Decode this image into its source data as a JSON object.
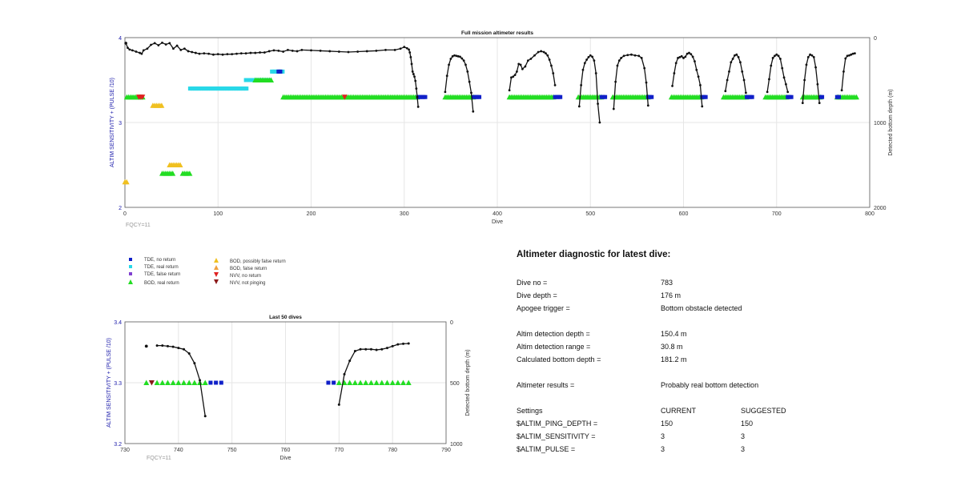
{
  "colors": {
    "tde_no_return": "#1020c8",
    "tde_real_return": "#28d8e8",
    "tde_false_return": "#8040d0",
    "bod_real_return": "#22dd22",
    "bod_possibly_false_return": "#f0c020",
    "bod_false_return": "#f0a040",
    "nvv_no_return": "#e02020",
    "nvv_not_pinging": "#8b1a1a",
    "left_axis_label": "#1a1aaa",
    "depth_line": "#111111",
    "fqcy_text": "#999999"
  },
  "chart_data": [
    {
      "id": "full_mission",
      "type": "scatter",
      "title": "Full mission altimeter results",
      "xlabel": "Dive",
      "ylabel_left": "ALTIM SENSITIVITY + (PULSE /10)",
      "ylabel_right": "Detected bottom depth (m)",
      "xlim": [
        0,
        800
      ],
      "ylim_left": [
        2,
        4
      ],
      "ylim_right": [
        2000,
        0
      ],
      "x_ticks": [
        "0",
        "100",
        "200",
        "300",
        "400",
        "500",
        "600",
        "700",
        "800"
      ],
      "y_left_ticks": [
        "2",
        "3",
        "4"
      ],
      "y_right_ticks": [
        "0",
        "1000",
        "2000"
      ],
      "grid": true,
      "annotation": "FQCY=11",
      "markers": [
        {
          "category": "bod_real_return",
          "shape": "tri-up",
          "y": 3.3,
          "ranges": [
            [
              2,
              20
            ],
            [
              170,
              315
            ],
            [
              344,
              375
            ],
            [
              413,
              462
            ],
            [
              487,
              512
            ],
            [
              524,
              562
            ],
            [
              587,
              620
            ],
            [
              643,
              668
            ],
            [
              688,
              712
            ],
            [
              728,
              747
            ],
            [
              765,
              786
            ]
          ]
        },
        {
          "category": "tde_no_return",
          "shape": "square",
          "y": 3.3,
          "ranges": [
            [
              315,
              323
            ],
            [
              375,
              382
            ],
            [
              462,
              468
            ],
            [
              512,
              516
            ],
            [
              562,
              566
            ],
            [
              620,
              624
            ],
            [
              668,
              674
            ],
            [
              712,
              716
            ],
            [
              747,
              749
            ],
            [
              765,
              768
            ]
          ]
        },
        {
          "category": "nvv_no_return",
          "shape": "tri-down",
          "y": 3.3,
          "ranges": [
            [
              15,
              20
            ],
            [
              236,
              237
            ]
          ]
        },
        {
          "category": "bod_possibly_false_return",
          "shape": "tri-up",
          "y": 3.2,
          "ranges": [
            [
              30,
              40
            ]
          ]
        },
        {
          "category": "tde_real_return",
          "shape": "square",
          "y": 3.4,
          "ranges": [
            [
              70,
              132
            ]
          ]
        },
        {
          "category": "tde_real_return",
          "shape": "square",
          "y": 3.5,
          "ranges": [
            [
              130,
              155
            ]
          ]
        },
        {
          "category": "bod_real_return",
          "shape": "tri-up",
          "y": 3.5,
          "ranges": [
            [
              140,
              158
            ]
          ]
        },
        {
          "category": "tde_real_return",
          "shape": "square",
          "y": 3.6,
          "ranges": [
            [
              158,
              170
            ]
          ]
        },
        {
          "category": "tde_no_return",
          "shape": "square",
          "y": 3.6,
          "ranges": [
            [
              165,
              168
            ]
          ]
        },
        {
          "category": "bod_possibly_false_return",
          "shape": "tri-up",
          "y": 2.5,
          "ranges": [
            [
              48,
              60
            ]
          ]
        },
        {
          "category": "bod_real_return",
          "shape": "tri-up",
          "y": 2.4,
          "ranges": [
            [
              40,
              52
            ],
            [
              62,
              70
            ]
          ]
        },
        {
          "category": "bod_possibly_false_return",
          "shape": "tri-up",
          "y": 2.3,
          "ranges": [
            [
              0,
              2
            ]
          ]
        }
      ],
      "depth_series": [
        {
          "x": [
            1,
            3,
            5,
            8,
            12,
            16,
            18,
            20,
            24,
            28,
            32,
            36,
            40,
            44,
            48,
            52,
            56,
            60,
            64,
            68,
            72,
            76,
            80,
            85,
            90,
            95,
            100,
            105,
            110,
            115,
            120,
            125,
            130,
            135,
            140,
            145,
            150,
            155,
            160,
            165,
            170,
            175,
            180,
            185,
            190,
            200,
            210,
            220,
            230,
            240,
            250,
            260,
            270,
            280,
            290,
            296,
            300,
            303,
            305,
            306,
            307,
            308,
            309,
            310,
            311,
            312,
            313,
            314,
            315
          ],
          "y": [
            65,
            120,
            140,
            150,
            165,
            180,
            190,
            150,
            130,
            85,
            65,
            90,
            60,
            80,
            65,
            130,
            95,
            145,
            130,
            160,
            170,
            180,
            190,
            185,
            190,
            200,
            195,
            200,
            195,
            195,
            190,
            185,
            185,
            180,
            180,
            175,
            175,
            160,
            150,
            155,
            165,
            145,
            155,
            160,
            145,
            150,
            155,
            160,
            165,
            170,
            165,
            160,
            155,
            145,
            145,
            130,
            110,
            125,
            140,
            175,
            230,
            310,
            400,
            430,
            460,
            510,
            600,
            700,
            815
          ]
        },
        {
          "x": [
            344,
            346,
            348,
            350,
            352,
            354,
            356,
            358,
            360,
            362,
            364,
            366,
            368,
            370,
            372,
            374
          ],
          "y": [
            640,
            450,
            320,
            250,
            220,
            210,
            215,
            220,
            225,
            245,
            270,
            320,
            400,
            520,
            650,
            870
          ]
        },
        {
          "x": [
            413,
            415,
            417,
            419,
            421,
            423,
            425,
            427,
            430,
            433,
            436,
            440,
            444,
            447,
            450,
            452,
            454,
            456,
            458,
            460,
            462
          ],
          "y": [
            620,
            470,
            460,
            440,
            400,
            310,
            320,
            370,
            340,
            270,
            250,
            210,
            170,
            160,
            170,
            185,
            210,
            260,
            330,
            420,
            560
          ]
        },
        {
          "x": [
            488,
            490,
            492,
            494,
            496,
            498,
            500,
            502,
            504,
            506,
            508,
            510
          ],
          "y": [
            810,
            560,
            380,
            300,
            260,
            230,
            210,
            225,
            270,
            420,
            780,
            1000
          ]
        },
        {
          "x": [
            525,
            527,
            529,
            531,
            533,
            536,
            540,
            544,
            548,
            552,
            555,
            558,
            560,
            562
          ],
          "y": [
            840,
            520,
            330,
            270,
            240,
            215,
            205,
            200,
            210,
            215,
            240,
            360,
            530,
            800
          ]
        },
        {
          "x": [
            588,
            590,
            592,
            594,
            596,
            598,
            600,
            602,
            604,
            606,
            608,
            610,
            612,
            614,
            616,
            618,
            620
          ],
          "y": [
            570,
            420,
            300,
            240,
            230,
            220,
            240,
            225,
            190,
            180,
            195,
            225,
            280,
            380,
            460,
            560,
            810
          ]
        },
        {
          "x": [
            645,
            647,
            649,
            651,
            653,
            655,
            657,
            659,
            661,
            663,
            665,
            667
          ],
          "y": [
            630,
            500,
            400,
            290,
            250,
            210,
            200,
            230,
            290,
            400,
            500,
            650
          ]
        },
        {
          "x": [
            690,
            692,
            694,
            696,
            698,
            700,
            702,
            704,
            706,
            708,
            710,
            712
          ],
          "y": [
            640,
            490,
            330,
            240,
            215,
            200,
            215,
            250,
            360,
            470,
            550,
            640
          ]
        },
        {
          "x": [
            728,
            730,
            732,
            734,
            736,
            738,
            740,
            742,
            744,
            746
          ],
          "y": [
            770,
            500,
            320,
            230,
            200,
            210,
            230,
            350,
            550,
            770
          ]
        },
        {
          "x": [
            770,
            772,
            774,
            776,
            778,
            780,
            782,
            784
          ],
          "y": [
            620,
            400,
            245,
            215,
            210,
            200,
            190,
            185
          ]
        }
      ],
      "isolated_points": [
        {
          "x": 1,
          "y": 65
        }
      ]
    },
    {
      "id": "last_50",
      "type": "scatter",
      "title": "Last 50 dives",
      "xlabel": "Dive",
      "ylabel_left": "ALTIM SENSITIVITY + (PULSE /10)",
      "ylabel_right": "Detected bottom depth (m)",
      "xlim": [
        730,
        790
      ],
      "ylim_left": [
        3.2,
        3.4
      ],
      "ylim_right": [
        1000,
        0
      ],
      "x_ticks": [
        "730",
        "740",
        "750",
        "760",
        "770",
        "780",
        "790"
      ],
      "y_left_ticks": [
        "3.2",
        "3.3",
        "3.4"
      ],
      "y_right_ticks": [
        "0",
        "500",
        "1000"
      ],
      "grid": true,
      "annotation": "FQCY=11",
      "markers": [
        {
          "category": "bod_real_return",
          "shape": "tri-up",
          "y": 3.3,
          "x": [
            734,
            736,
            737,
            738,
            739,
            740,
            741,
            742,
            743,
            744,
            745
          ]
        },
        {
          "category": "nvv_not_pinging",
          "shape": "tri-down",
          "y": 3.3,
          "x": [
            735
          ]
        },
        {
          "category": "tde_no_return",
          "shape": "square",
          "y": 3.3,
          "x": [
            746,
            747,
            748,
            768,
            769
          ]
        },
        {
          "category": "bod_real_return",
          "shape": "tri-up",
          "y": 3.3,
          "x": [
            770,
            771,
            772,
            773,
            774,
            775,
            776,
            777,
            778,
            779,
            780,
            781,
            782,
            783
          ]
        }
      ],
      "depth_series": [
        {
          "x": [
            736,
            737,
            738,
            739,
            740,
            741,
            742,
            743,
            744,
            745
          ],
          "y": [
            195,
            195,
            200,
            205,
            215,
            225,
            260,
            340,
            480,
            775
          ]
        },
        {
          "x": [
            770,
            771,
            772,
            773,
            774,
            775,
            776,
            777,
            778,
            779,
            780,
            781,
            782,
            783
          ],
          "y": [
            680,
            430,
            320,
            240,
            225,
            225,
            225,
            230,
            225,
            215,
            200,
            185,
            180,
            178
          ]
        }
      ],
      "isolated_points": [
        {
          "x": 734,
          "y": 200
        }
      ]
    }
  ],
  "legend": {
    "items": [
      {
        "label": "TDE, no return",
        "category": "tde_no_return",
        "shape": "square"
      },
      {
        "label": "TDE, real return",
        "category": "tde_real_return",
        "shape": "square"
      },
      {
        "label": "TDE, false return",
        "category": "tde_false_return",
        "shape": "square"
      },
      {
        "label": "BOD, real return",
        "category": "bod_real_return",
        "shape": "tri-up"
      },
      {
        "label": "BOD, possibly false return",
        "category": "bod_possibly_false_return",
        "shape": "tri-up"
      },
      {
        "label": "BOD, false return",
        "category": "bod_false_return",
        "shape": "tri-up"
      },
      {
        "label": "NVV, no return",
        "category": "nvv_no_return",
        "shape": "tri-down"
      },
      {
        "label": "NVV, not pinging",
        "category": "nvv_not_pinging",
        "shape": "tri-down"
      }
    ]
  },
  "diagnostic": {
    "title": "Altimeter diagnostic for latest dive:",
    "dive_no_label": "Dive no =",
    "dive_no_value": "783",
    "dive_depth_label": "Dive depth =",
    "dive_depth_value": "176 m",
    "apogee_label": "Apogee trigger =",
    "apogee_value": "Bottom obstacle detected",
    "detection_depth_label": "Altim detection depth =",
    "detection_depth_value": "150.4 m",
    "detection_range_label": "Altim detection range =",
    "detection_range_value": "30.8 m",
    "calc_bottom_label": "Calculated bottom depth =",
    "calc_bottom_value": "181.2 m",
    "results_label": "Altimeter results =",
    "results_value": "Probably real bottom detection",
    "settings_header": "Settings",
    "current_header": "CURRENT",
    "suggested_header": "SUGGESTED",
    "ping_depth_label": "$ALTIM_PING_DEPTH =",
    "ping_depth_current": "150",
    "ping_depth_suggested": "150",
    "sensitivity_label": "$ALTIM_SENSITIVITY =",
    "sensitivity_current": "3",
    "sensitivity_suggested": "3",
    "pulse_label": "$ALTIM_PULSE =",
    "pulse_current": "3",
    "pulse_suggested": "3"
  }
}
